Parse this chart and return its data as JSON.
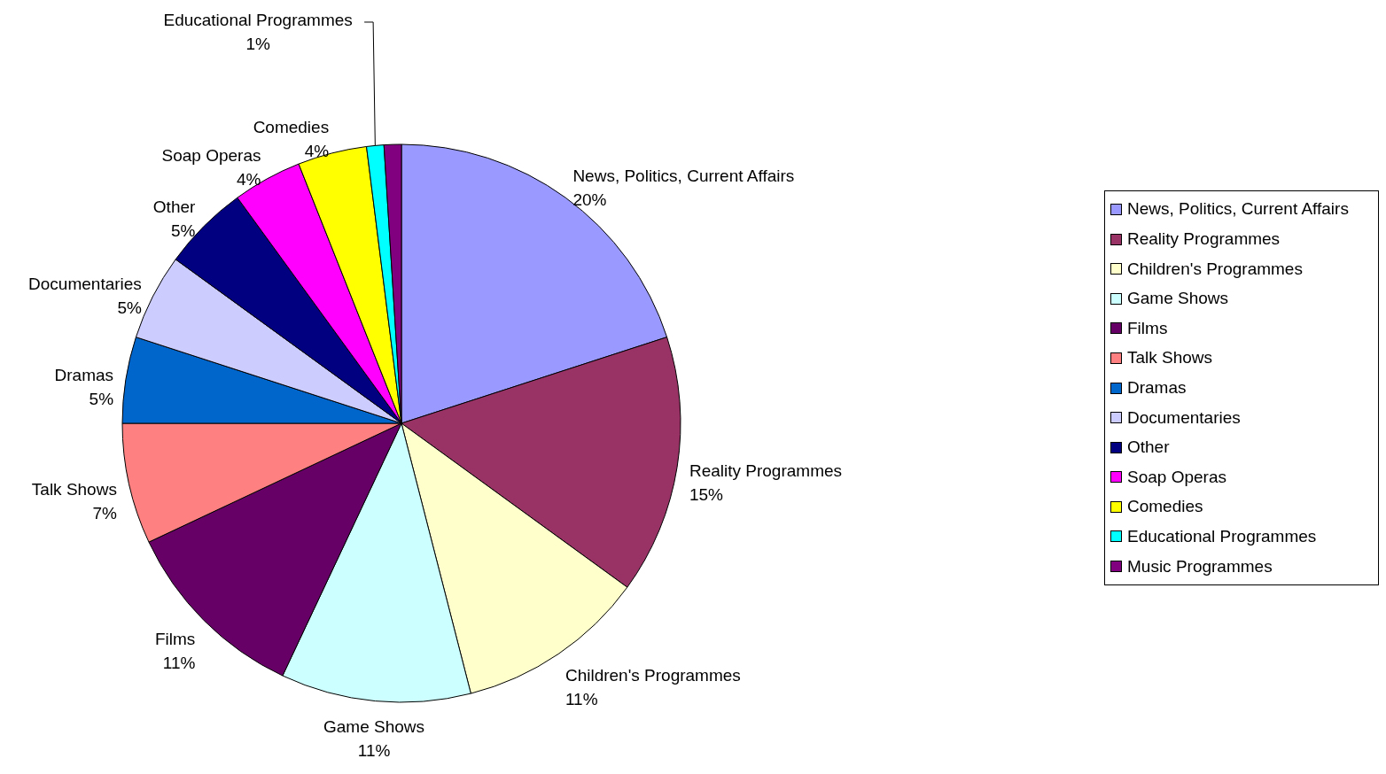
{
  "chart_data": {
    "type": "pie",
    "categories": [
      "News, Politics, Current Affairs",
      "Reality Programmes",
      "Children's Programmes",
      "Game Shows",
      "Films",
      "Talk Shows",
      "Dramas",
      "Documentaries",
      "Other",
      "Soap Operas",
      "Comedies",
      "Educational Programmes",
      "Music Programmes"
    ],
    "values": [
      20,
      15,
      11,
      11,
      11,
      7,
      5,
      5,
      5,
      4,
      4,
      1,
      1
    ],
    "value_labels": [
      "20%",
      "15%",
      "11%",
      "11%",
      "11%",
      "7%",
      "5%",
      "5%",
      "5%",
      "4%",
      "4%",
      "1%",
      null
    ],
    "colors": [
      "#9999ff",
      "#993366",
      "#ffffcc",
      "#ccffff",
      "#660066",
      "#ff8080",
      "#0066cc",
      "#ccccff",
      "#000080",
      "#ff00ff",
      "#ffff00",
      "#00ffff",
      "#800080"
    ],
    "legend": "right"
  }
}
